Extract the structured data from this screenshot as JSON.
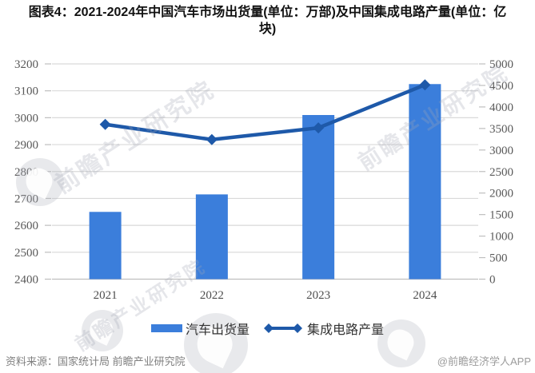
{
  "title": "图表4：2021-2024年中国汽车市场出货量(单位：万部)及中国集成电路产量(单位：亿块)",
  "chart_data": {
    "type": "bar+line",
    "title": "图表4：2021-2024年中国汽车市场出货量(单位：万部)及中国集成电路产量(单位：亿块)",
    "categories": [
      "2021",
      "2022",
      "2023",
      "2024"
    ],
    "series": [
      {
        "name": "汽车出货量",
        "type": "bar",
        "axis": "left",
        "unit": "万部",
        "color": "#3B7EDB",
        "values": [
          2650,
          2715,
          3010,
          3125
        ]
      },
      {
        "name": "集成电路产量",
        "type": "line",
        "axis": "right",
        "unit": "亿块",
        "color": "#1E59A9",
        "marker": "diamond",
        "values": [
          3594,
          3242,
          3514,
          4514
        ]
      }
    ],
    "left_axis": {
      "min": 2400,
      "max": 3200,
      "step": 100,
      "ticks": [
        2400,
        2500,
        2600,
        2700,
        2800,
        2900,
        3000,
        3100,
        3200
      ]
    },
    "right_axis": {
      "min": 0,
      "max": 5000,
      "step": 500,
      "ticks": [
        0,
        500,
        1000,
        1500,
        2000,
        2500,
        3000,
        3500,
        4000,
        4500,
        5000
      ]
    },
    "grid": "horizontal",
    "legend_position": "bottom"
  },
  "palette": {
    "bar_blue": "#3B7EDB",
    "line_blue": "#1E59A9",
    "gridline": "#D9D9D9",
    "axis_line": "#BFBFBF",
    "tick_text": "#595959"
  },
  "footer": {
    "source": "资料来源：国家统计局 前瞻产业研究院",
    "credit": "@前瞻经济学人APP"
  },
  "watermark": {
    "text": "前瞻产业研究院"
  }
}
